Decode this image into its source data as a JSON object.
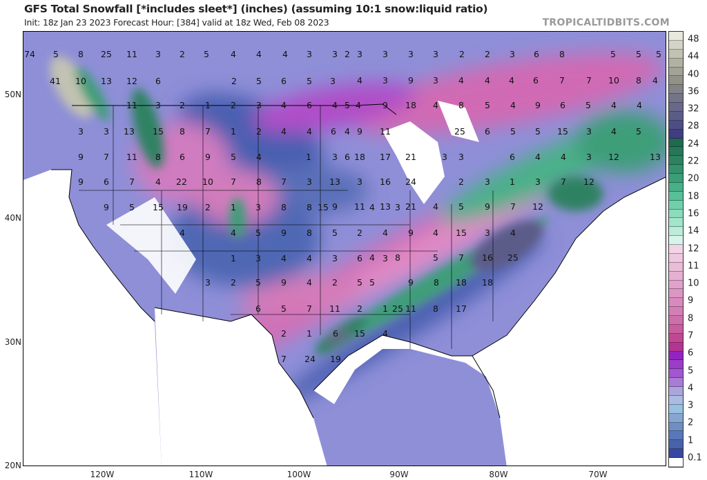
{
  "header": {
    "title": "GFS Total Snowfall [*includes sleet*] (inches) (assuming 10:1 snow:liquid ratio)",
    "subtitle": "Init: 18z Jan 23 2023   Forecast Hour: [384]   valid at 18z Wed, Feb 08 2023",
    "site": "TROPICALTIDBITS.COM"
  },
  "axes": {
    "lat_labels": [
      "50N",
      "40N",
      "30N",
      "20N"
    ],
    "lon_labels": [
      "120W",
      "110W",
      "100W",
      "90W",
      "80W",
      "70W"
    ]
  },
  "colorbar": {
    "labels": [
      "48",
      "44",
      "40",
      "36",
      "32",
      "28",
      "24",
      "22",
      "20",
      "18",
      "16",
      "14",
      "12",
      "11",
      "10",
      "9",
      "8",
      "7",
      "6",
      "5",
      "4",
      "3",
      "2",
      "1",
      "0.1"
    ],
    "colors": [
      "#e8e8dc",
      "#d4d4c6",
      "#c2c2b2",
      "#b2b2a2",
      "#a2a296",
      "#929288",
      "#828288",
      "#747488",
      "#68688a",
      "#5c5c88",
      "#4e4e86",
      "#3e3e80",
      "#1f6a50",
      "#267658",
      "#2d8262",
      "#35906c",
      "#3c9e78",
      "#48b088",
      "#58c098",
      "#70d0ac",
      "#8adcbc",
      "#a2e4cc",
      "#bcecda",
      "#d6f4ea",
      "#f2d4e6",
      "#eec8de",
      "#eabcd8",
      "#e6b0d2",
      "#e0a2cc",
      "#dc96c4",
      "#d88abe",
      "#d47eb6",
      "#ce6eaa",
      "#c85e9e",
      "#c04892",
      "#b43494",
      "#9424c0",
      "#9a3ec8",
      "#a256d0",
      "#a87cd4",
      "#aaa6dc",
      "#aabce2",
      "#98c0e0",
      "#86a6d0",
      "#6e8ec4",
      "#5878b8",
      "#4862ac",
      "#3848a0",
      "#ffffff"
    ]
  },
  "snow_totals": [
    "74",
    "5",
    "8",
    "25",
    "11",
    "3",
    "2",
    "5",
    "4",
    "4",
    "4",
    "3",
    "3",
    "41",
    "10",
    "13",
    "12",
    "6",
    "2",
    "5",
    "6",
    "5",
    "3",
    "4",
    "3",
    "11",
    "3",
    "2",
    "1",
    "2",
    "3",
    "4",
    "6",
    "4",
    "3",
    "3",
    "13",
    "15",
    "8",
    "7",
    "1",
    "2",
    "4",
    "4",
    "6",
    "9",
    "7",
    "11",
    "8",
    "6",
    "9",
    "5",
    "4",
    "1",
    "3",
    "9",
    "6",
    "7",
    "4",
    "22",
    "10",
    "7",
    "8",
    "7",
    "3",
    "2",
    "3",
    "3",
    "3",
    "3",
    "2",
    "2",
    "3",
    "6",
    "8",
    "5",
    "5",
    "5",
    "9",
    "3",
    "4",
    "4",
    "4",
    "6",
    "7",
    "7",
    "10",
    "8",
    "4",
    "5",
    "4",
    "9",
    "18",
    "4",
    "8",
    "5",
    "4",
    "9",
    "6",
    "5",
    "4",
    "4",
    "4",
    "9",
    "11",
    "25",
    "6",
    "5",
    "5",
    "15",
    "3",
    "4",
    "5",
    "6",
    "18",
    "17",
    "21",
    "3",
    "3",
    "6",
    "4",
    "4",
    "3",
    "12",
    "13",
    "13",
    "3",
    "16",
    "24",
    "2",
    "3",
    "1",
    "3",
    "7",
    "12",
    "9",
    "11",
    "13",
    "21",
    "4",
    "5",
    "9",
    "7",
    "12",
    "9",
    "5",
    "15",
    "19",
    "2",
    "1",
    "3",
    "8",
    "8",
    "15",
    "4",
    "3",
    "4",
    "4",
    "5",
    "9",
    "8",
    "5",
    "2",
    "4",
    "1",
    "3",
    "4",
    "4",
    "3",
    "6",
    "3",
    "3",
    "2",
    "5",
    "9",
    "4",
    "2",
    "5",
    "6",
    "5",
    "7",
    "11",
    "2",
    "1",
    "2",
    "1",
    "6",
    "15",
    "4",
    "7",
    "24",
    "19",
    "9",
    "4",
    "15",
    "3",
    "4",
    "4",
    "8",
    "5",
    "7",
    "16",
    "25",
    "5",
    "9",
    "8",
    "18",
    "18",
    "25",
    "11",
    "8",
    "17",
    "8",
    "6",
    "15",
    "13",
    "4",
    "2"
  ]
}
